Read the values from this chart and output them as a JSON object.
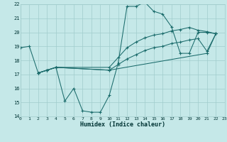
{
  "xlabel": "Humidex (Indice chaleur)",
  "xlim": [
    0,
    23
  ],
  "ylim": [
    14,
    22
  ],
  "xticks": [
    0,
    1,
    2,
    3,
    4,
    5,
    6,
    7,
    8,
    9,
    10,
    11,
    12,
    13,
    14,
    15,
    16,
    17,
    18,
    19,
    20,
    21,
    22,
    23
  ],
  "yticks": [
    14,
    15,
    16,
    17,
    18,
    19,
    20,
    21,
    22
  ],
  "bg_color": "#c5e8e8",
  "line_color": "#1a6b6b",
  "grid_color": "#a0cccc",
  "lines": [
    {
      "x": [
        0,
        1,
        2,
        3,
        4,
        5,
        6,
        7,
        8,
        9,
        10,
        11,
        12,
        13,
        14,
        15,
        16,
        17,
        18,
        19,
        20,
        21,
        22
      ],
      "y": [
        18.9,
        19.0,
        17.1,
        17.3,
        17.5,
        15.1,
        16.0,
        14.4,
        14.3,
        14.3,
        15.5,
        17.8,
        21.85,
        21.85,
        22.15,
        21.5,
        21.3,
        20.4,
        18.5,
        18.5,
        20.0,
        20.0,
        19.9
      ]
    },
    {
      "x": [
        2,
        3,
        4,
        10,
        11,
        12,
        13,
        14,
        15,
        16,
        17,
        18,
        19,
        20,
        21,
        22
      ],
      "y": [
        17.1,
        17.3,
        17.5,
        17.5,
        18.2,
        18.9,
        19.3,
        19.6,
        19.8,
        19.9,
        20.1,
        20.2,
        20.35,
        20.15,
        20.05,
        19.9
      ]
    },
    {
      "x": [
        2,
        3,
        4,
        10,
        11,
        12,
        13,
        14,
        15,
        16,
        17,
        18,
        19,
        20,
        21,
        22
      ],
      "y": [
        17.1,
        17.3,
        17.5,
        17.3,
        17.7,
        18.1,
        18.4,
        18.7,
        18.9,
        19.0,
        19.2,
        19.3,
        19.45,
        19.55,
        18.65,
        19.9
      ]
    },
    {
      "x": [
        2,
        3,
        4,
        10,
        21,
        22
      ],
      "y": [
        17.1,
        17.3,
        17.5,
        17.3,
        18.5,
        19.9
      ]
    }
  ]
}
